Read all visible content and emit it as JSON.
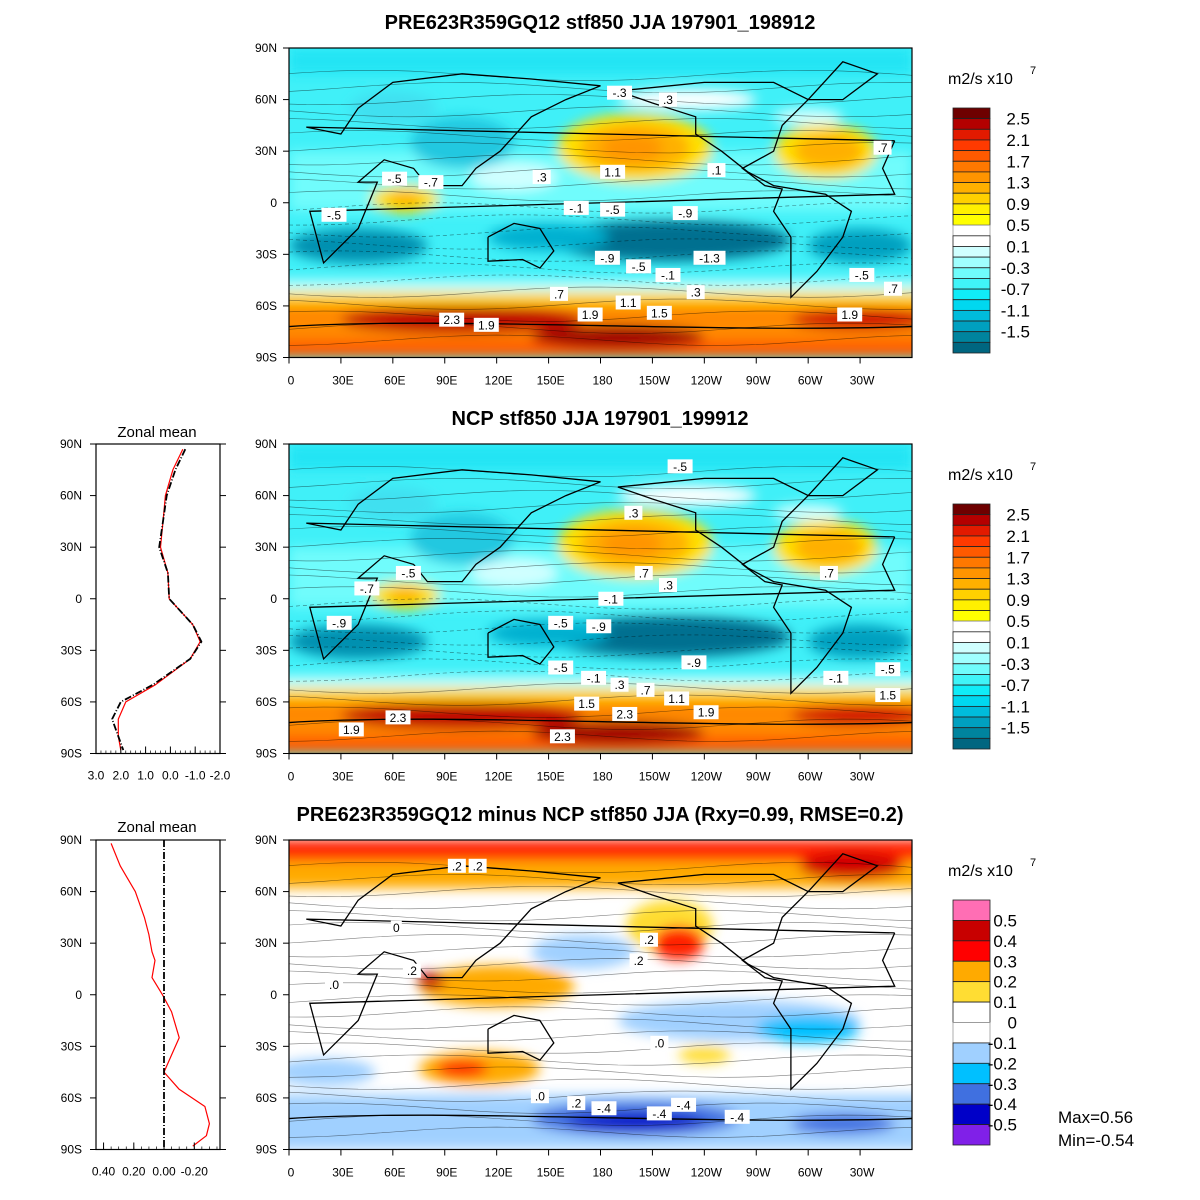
{
  "chart_data": [
    {
      "type": "heatmap",
      "title": "PRE623R359GQ12 stf850 JJA 197901_198912",
      "units_label": "m2/s x10",
      "units_exp": "7",
      "colorbar_labels": [
        "2.5",
        "2.1",
        "1.7",
        "1.3",
        "0.9",
        "0.5",
        "0.1",
        "-0.3",
        "-0.7",
        "-1.1",
        "-1.5"
      ],
      "colorbar_colors": [
        "#6e0000",
        "#b40000",
        "#e21a00",
        "#ff3a00",
        "#ff5a00",
        "#ff7800",
        "#ff9400",
        "#ffb000",
        "#ffd000",
        "#fff000",
        "#ffff00",
        "#ffffff",
        "#ffffff",
        "#d0ffff",
        "#a0ffff",
        "#70fcfc",
        "#40f4f8",
        "#10ecf8",
        "#00d8f0",
        "#00bcdc",
        "#00a0c0",
        "#00849e",
        "#006680"
      ],
      "xticks": [
        "0",
        "30E",
        "60E",
        "90E",
        "120E",
        "150E",
        "180",
        "150W",
        "120W",
        "90W",
        "60W",
        "30W"
      ],
      "yticks": [
        "90N",
        "60N",
        "30N",
        "0",
        "30S",
        "60S",
        "90S"
      ],
      "contour_labels": [
        {
          "t": "-.5",
          "lon": 61,
          "lat": 14
        },
        {
          "t": "-.7",
          "lon": 82,
          "lat": 12
        },
        {
          "t": "-.5",
          "lon": 26,
          "lat": -7
        },
        {
          "t": ".3",
          "lon": 146,
          "lat": 15
        },
        {
          "t": "1.1",
          "lon": 187,
          "lat": 18
        },
        {
          "t": ".1",
          "lon": 247,
          "lat": 19
        },
        {
          "t": ".7",
          "lon": 343,
          "lat": 32
        },
        {
          "t": "-.3",
          "lon": 191,
          "lat": 64
        },
        {
          "t": ".3",
          "lon": 219,
          "lat": 60
        },
        {
          "t": "-.1",
          "lon": 166,
          "lat": -3
        },
        {
          "t": "-.5",
          "lon": 187,
          "lat": -4
        },
        {
          "t": "-.9",
          "lon": 229,
          "lat": -6
        },
        {
          "t": "-.9",
          "lon": 184,
          "lat": -32
        },
        {
          "t": "-.5",
          "lon": 202,
          "lat": -37
        },
        {
          "t": "-.1",
          "lon": 219,
          "lat": -42
        },
        {
          "t": "-1.3",
          "lon": 243,
          "lat": -32
        },
        {
          "t": ".3",
          "lon": 235,
          "lat": -52
        },
        {
          "t": "-.5",
          "lon": 331,
          "lat": -42
        },
        {
          "t": ".7",
          "lon": 349,
          "lat": -50
        },
        {
          "t": ".7",
          "lon": 156,
          "lat": -53
        },
        {
          "t": "1.1",
          "lon": 196,
          "lat": -58
        },
        {
          "t": "1.9",
          "lon": 174,
          "lat": -65
        },
        {
          "t": "1.5",
          "lon": 214,
          "lat": -64
        },
        {
          "t": "1.9",
          "lon": 324,
          "lat": -65
        },
        {
          "t": "2.3",
          "lon": 94,
          "lat": -68
        },
        {
          "t": "1.9",
          "lon": 114,
          "lat": -71
        }
      ]
    },
    {
      "type": "heatmap",
      "title": "NCP stf850 JJA 197901_199912",
      "units_label": "m2/s x10",
      "units_exp": "7",
      "colorbar_labels": [
        "2.5",
        "2.1",
        "1.7",
        "1.3",
        "0.9",
        "0.5",
        "0.1",
        "-0.3",
        "-0.7",
        "-1.1",
        "-1.5"
      ],
      "xticks": [
        "0",
        "30E",
        "60E",
        "90E",
        "120E",
        "150E",
        "180",
        "150W",
        "120W",
        "90W",
        "60W",
        "30W"
      ],
      "yticks": [
        "90N",
        "60N",
        "30N",
        "0",
        "30S",
        "60S",
        "90S"
      ],
      "contour_labels": [
        {
          "t": "-.5",
          "lon": 226,
          "lat": 77
        },
        {
          "t": ".3",
          "lon": 199,
          "lat": 50
        },
        {
          "t": ".7",
          "lon": 205,
          "lat": 15
        },
        {
          "t": ".3",
          "lon": 219,
          "lat": 8
        },
        {
          "t": ".7",
          "lon": 312,
          "lat": 15
        },
        {
          "t": "-.5",
          "lon": 69,
          "lat": 15
        },
        {
          "t": "-.7",
          "lon": 45,
          "lat": 6
        },
        {
          "t": "-.1",
          "lon": 186,
          "lat": 0
        },
        {
          "t": "-.9",
          "lon": 29,
          "lat": -14
        },
        {
          "t": "-.5",
          "lon": 157,
          "lat": -14
        },
        {
          "t": "-.9",
          "lon": 179,
          "lat": -16
        },
        {
          "t": "-.9",
          "lon": 234,
          "lat": -37
        },
        {
          "t": "-.5",
          "lon": 157,
          "lat": -40
        },
        {
          "t": "-.1",
          "lon": 176,
          "lat": -46
        },
        {
          "t": ".3",
          "lon": 191,
          "lat": -50
        },
        {
          "t": ".7",
          "lon": 206,
          "lat": -53
        },
        {
          "t": "1.1",
          "lon": 224,
          "lat": -58
        },
        {
          "t": "-.1",
          "lon": 316,
          "lat": -46
        },
        {
          "t": "-.5",
          "lon": 346,
          "lat": -41
        },
        {
          "t": "1.5",
          "lon": 346,
          "lat": -56
        },
        {
          "t": "1.5",
          "lon": 172,
          "lat": -61
        },
        {
          "t": "2.3",
          "lon": 194,
          "lat": -67
        },
        {
          "t": "1.9",
          "lon": 241,
          "lat": -66
        },
        {
          "t": "2.3",
          "lon": 63,
          "lat": -69
        },
        {
          "t": "1.9",
          "lon": 36,
          "lat": -76
        },
        {
          "t": "2.3",
          "lon": 158,
          "lat": -80
        }
      ]
    },
    {
      "type": "heatmap",
      "title": "PRE623R359GQ12 minus NCP stf850 JJA (Rxy=0.99, RMSE=0.2)",
      "units_label": "m2/s x10",
      "units_exp": "7",
      "colorbar_labels": [
        "0.5",
        "0.4",
        "0.3",
        "0.2",
        "0.1",
        "0",
        "-0.1",
        "-0.2",
        "-0.3",
        "-0.4",
        "-0.5"
      ],
      "colorbar_colors": [
        "#ff6eb4",
        "#c80000",
        "#ff0000",
        "#ffaa00",
        "#ffdd33",
        "#ffffff",
        "#ffffff",
        "#a0d0ff",
        "#00c0ff",
        "#4070e0",
        "#0000c8",
        "#8020e8"
      ],
      "max_label": "Max=0.56",
      "min_label": "Min=-0.54",
      "xticks": [
        "0",
        "30E",
        "60E",
        "90E",
        "120E",
        "150E",
        "180",
        "150W",
        "120W",
        "90W",
        "60W",
        "30W"
      ],
      "yticks": [
        "90N",
        "60N",
        "30N",
        "0",
        "30S",
        "60S",
        "90S"
      ],
      "contour_labels": [
        {
          "t": ".2",
          "lon": 97,
          "lat": 75
        },
        {
          "t": ".2",
          "lon": 109,
          "lat": 75
        },
        {
          "t": ".2",
          "lon": 208,
          "lat": 32
        },
        {
          "t": ".2",
          "lon": 202,
          "lat": 20
        },
        {
          "t": "0",
          "lon": 62,
          "lat": 39
        },
        {
          "t": ".2",
          "lon": 71,
          "lat": 14
        },
        {
          "t": ".0",
          "lon": 26,
          "lat": 6
        },
        {
          "t": ".0",
          "lon": 214,
          "lat": -28
        },
        {
          "t": ".0",
          "lon": 145,
          "lat": -59
        },
        {
          "t": ".2",
          "lon": 166,
          "lat": -63
        },
        {
          "t": "-.4",
          "lon": 182,
          "lat": -66
        },
        {
          "t": "-.4",
          "lon": 214,
          "lat": -69
        },
        {
          "t": "-.4",
          "lon": 228,
          "lat": -64
        },
        {
          "t": "-.4",
          "lon": 259,
          "lat": -71
        }
      ]
    },
    {
      "type": "line",
      "title": "Zonal mean",
      "xticks": [
        "3.0",
        "2.0",
        "1.0",
        "0.0",
        "-1.0",
        "-2.0"
      ],
      "xlim": [
        3.0,
        -2.0
      ],
      "yticks": [
        "90N",
        "60N",
        "30N",
        "0",
        "30S",
        "60S",
        "90S"
      ],
      "series": [
        {
          "color": "#ff0000",
          "lat": [
            87,
            75,
            60,
            45,
            30,
            15,
            0,
            -15,
            -25,
            -35,
            -50,
            -60,
            -70,
            -80,
            -88
          ],
          "values": [
            -0.5,
            -0.1,
            0.2,
            0.3,
            0.4,
            0.1,
            0.05,
            -0.9,
            -1.2,
            -0.8,
            0.6,
            1.8,
            2.1,
            2.1,
            2.0
          ]
        },
        {
          "color": "#000000",
          "dash": true,
          "lat": [
            87,
            75,
            60,
            45,
            30,
            15,
            0,
            -15,
            -25,
            -35,
            -50,
            -60,
            -70,
            -80,
            -88
          ],
          "values": [
            -0.6,
            -0.2,
            0.15,
            0.3,
            0.45,
            0.1,
            0.05,
            -0.9,
            -1.25,
            -0.8,
            0.7,
            2.0,
            2.35,
            2.1,
            1.9
          ]
        }
      ]
    },
    {
      "type": "line",
      "title": "Zonal mean",
      "xticks": [
        "0.40",
        "0.20",
        "0.00",
        "-0.20"
      ],
      "xlim": [
        0.45,
        -0.37
      ],
      "yticks": [
        "90N",
        "60N",
        "30N",
        "0",
        "30S",
        "60S",
        "90S"
      ],
      "series": [
        {
          "color": "#ff0000",
          "lat": [
            88,
            75,
            60,
            45,
            35,
            30,
            25,
            20,
            10,
            0,
            -10,
            -25,
            -35,
            -45,
            -55,
            -65,
            -75,
            -82,
            -88
          ],
          "values": [
            0.35,
            0.29,
            0.19,
            0.13,
            0.1,
            0.09,
            0.08,
            0.06,
            0.08,
            0.01,
            -0.05,
            -0.1,
            -0.05,
            0.0,
            -0.1,
            -0.27,
            -0.3,
            -0.28,
            -0.19
          ]
        },
        {
          "color": "#000000",
          "dash": true,
          "lat": [
            90,
            -90
          ],
          "values": [
            0,
            0
          ]
        }
      ]
    }
  ]
}
